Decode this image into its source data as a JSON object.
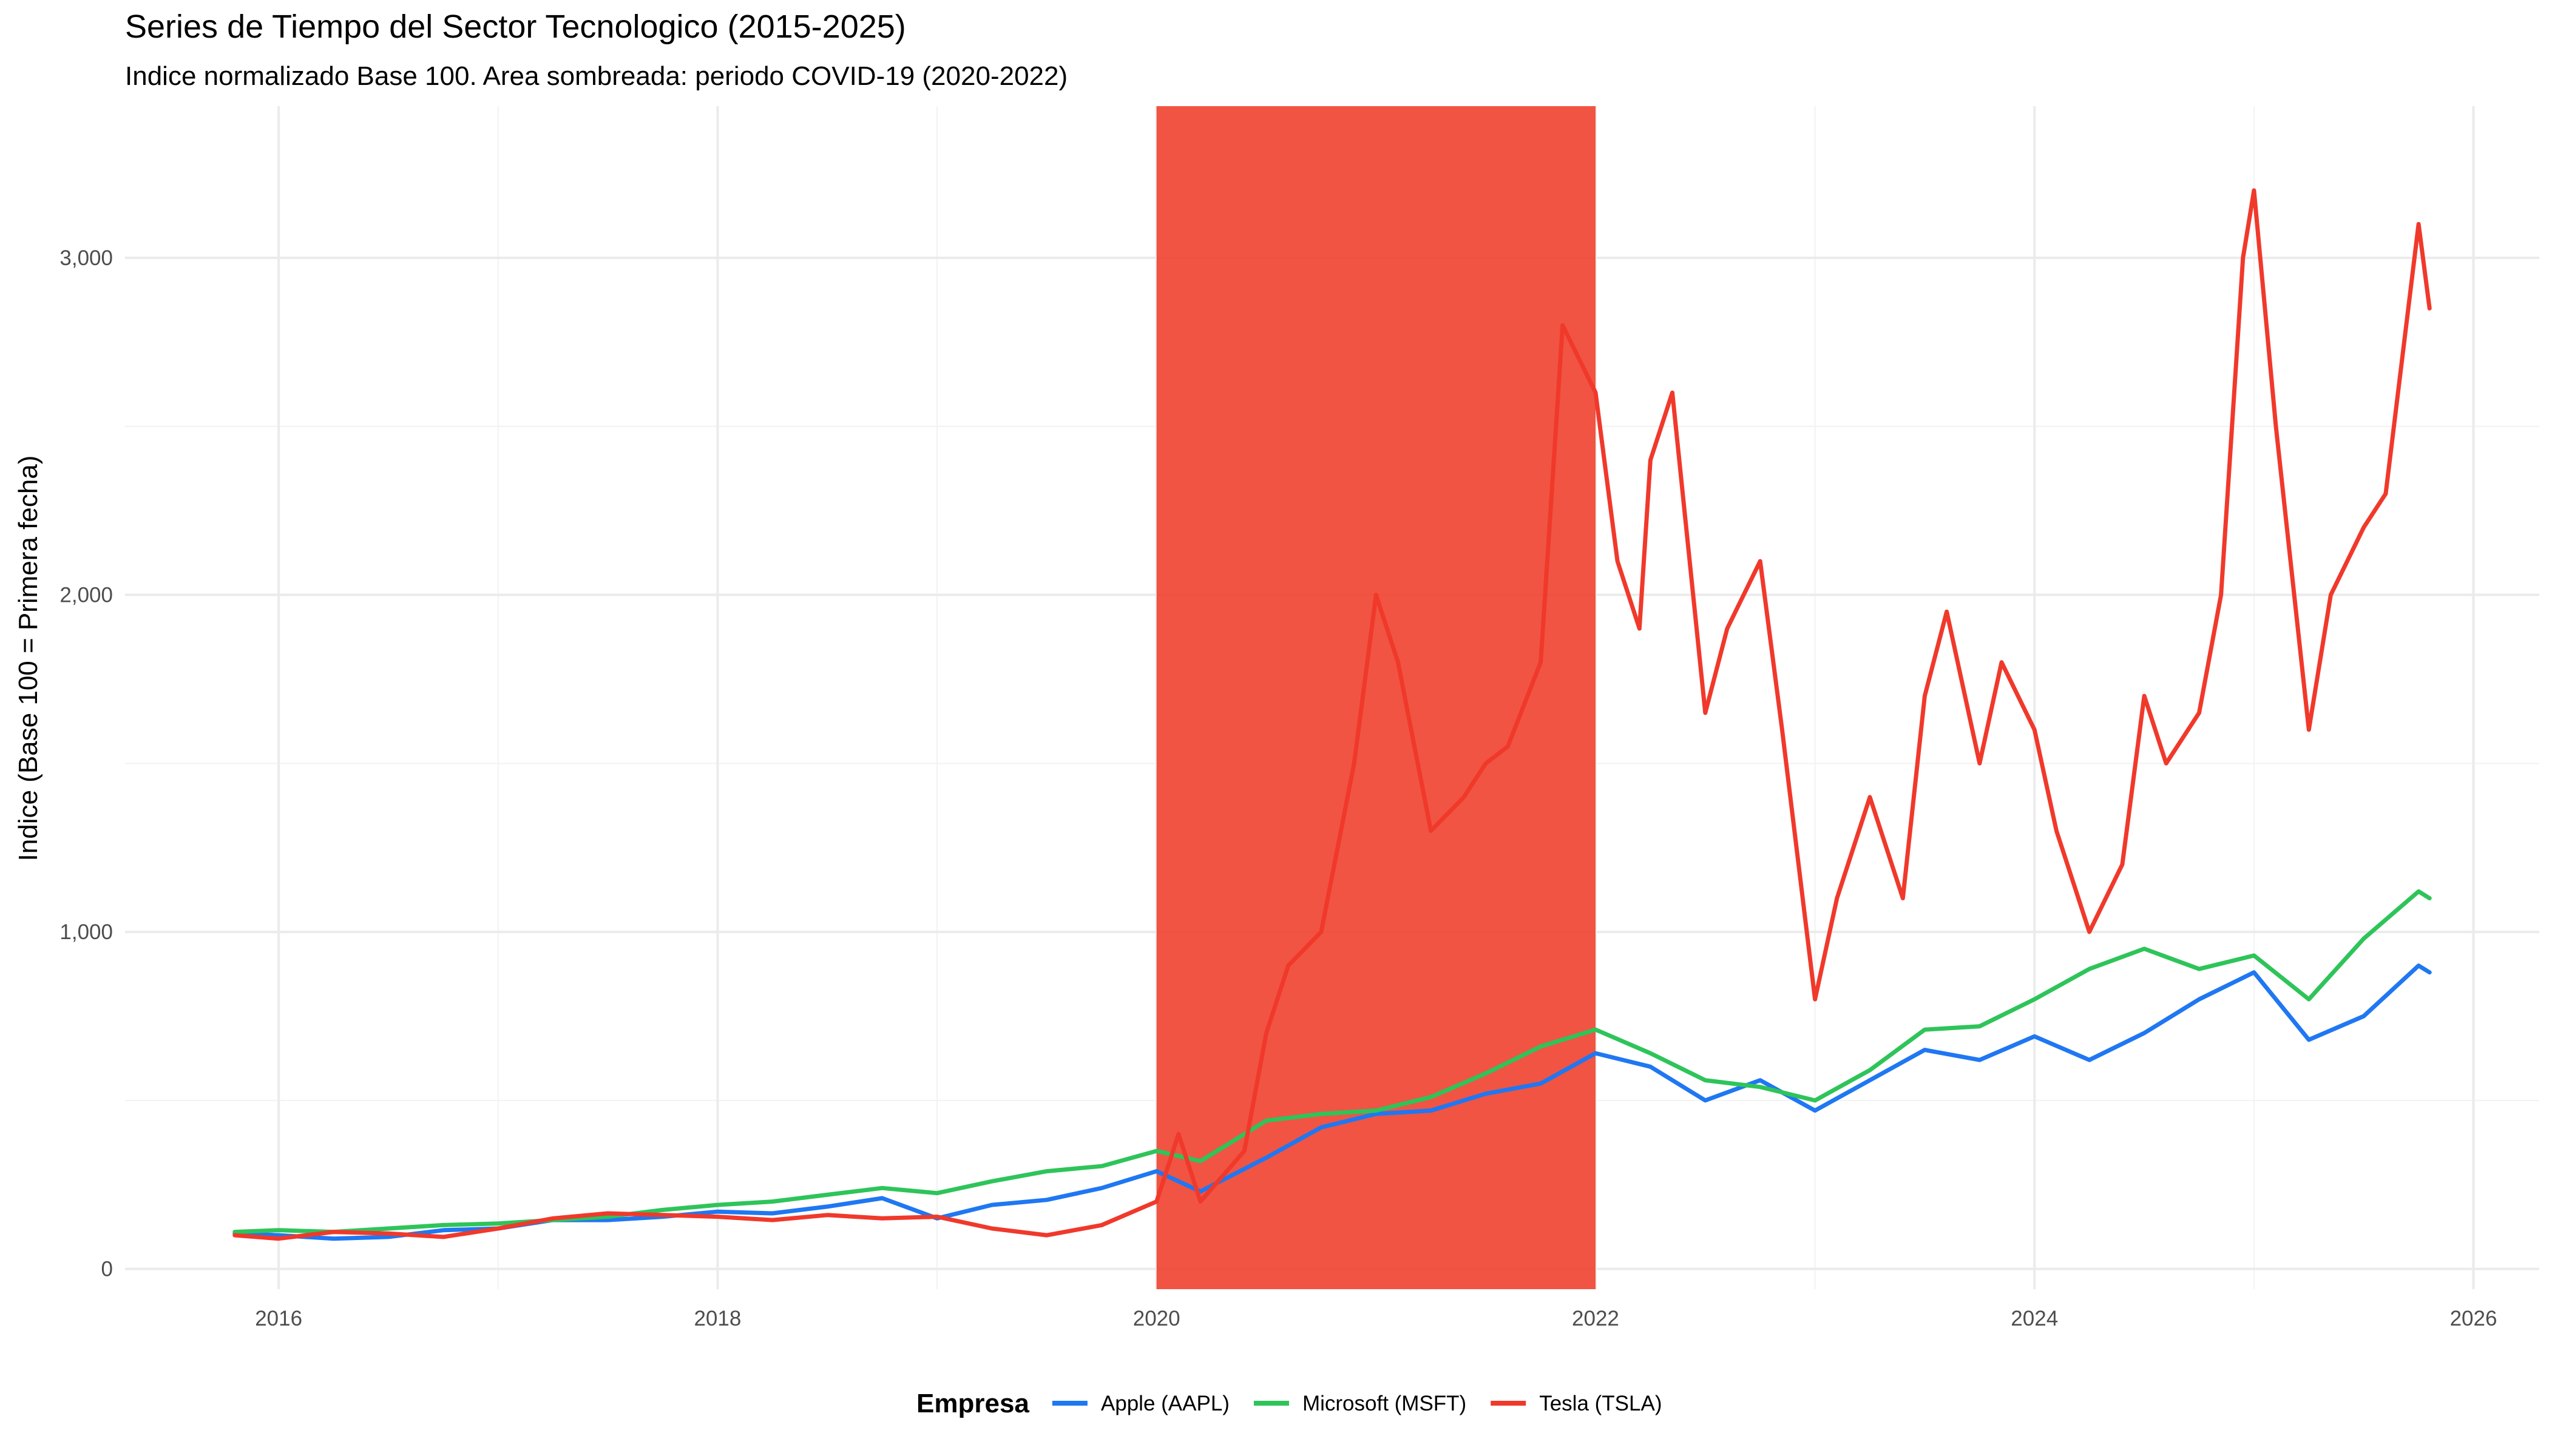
{
  "chart_data": {
    "type": "line",
    "title": "Series de Tiempo del Sector Tecnologico (2015-2025)",
    "subtitle": "Indice normalizado Base 100. Area sombreada: periodo COVID-19 (2020-2022)",
    "xlabel": "",
    "ylabel": "Indice (Base 100 = Primera fecha)",
    "xlim": [
      2015.3,
      2026.3
    ],
    "ylim": [
      -60,
      3450
    ],
    "x_ticks": [
      "2016",
      "2018",
      "2020",
      "2022",
      "2024",
      "2026"
    ],
    "y_ticks": [
      "0",
      "1,000",
      "2,000",
      "3,000"
    ],
    "grid": true,
    "legend_position": "bottom",
    "legend_title": "Empresa",
    "shaded_region": {
      "x_start": 2020.0,
      "x_end": 2022.0,
      "color": "#f0412e"
    },
    "series": [
      {
        "name": "Apple (AAPL)",
        "color": "#1f77f2",
        "points": [
          [
            2015.8,
            105
          ],
          [
            2016.0,
            100
          ],
          [
            2016.25,
            90
          ],
          [
            2016.5,
            95
          ],
          [
            2016.75,
            115
          ],
          [
            2017.0,
            120
          ],
          [
            2017.25,
            145
          ],
          [
            2017.5,
            145
          ],
          [
            2017.75,
            155
          ],
          [
            2018.0,
            170
          ],
          [
            2018.25,
            165
          ],
          [
            2018.5,
            185
          ],
          [
            2018.75,
            210
          ],
          [
            2019.0,
            150
          ],
          [
            2019.25,
            190
          ],
          [
            2019.5,
            205
          ],
          [
            2019.75,
            240
          ],
          [
            2020.0,
            290
          ],
          [
            2020.2,
            230
          ],
          [
            2020.5,
            330
          ],
          [
            2020.75,
            420
          ],
          [
            2021.0,
            460
          ],
          [
            2021.25,
            470
          ],
          [
            2021.5,
            520
          ],
          [
            2021.75,
            550
          ],
          [
            2022.0,
            640
          ],
          [
            2022.25,
            600
          ],
          [
            2022.5,
            500
          ],
          [
            2022.75,
            560
          ],
          [
            2023.0,
            470
          ],
          [
            2023.25,
            560
          ],
          [
            2023.5,
            650
          ],
          [
            2023.75,
            620
          ],
          [
            2024.0,
            690
          ],
          [
            2024.25,
            620
          ],
          [
            2024.5,
            700
          ],
          [
            2024.75,
            800
          ],
          [
            2025.0,
            880
          ],
          [
            2025.25,
            680
          ],
          [
            2025.5,
            750
          ],
          [
            2025.75,
            900
          ],
          [
            2025.8,
            880
          ]
        ]
      },
      {
        "name": "Microsoft (MSFT)",
        "color": "#2ec45a",
        "points": [
          [
            2015.8,
            110
          ],
          [
            2016.0,
            115
          ],
          [
            2016.25,
            110
          ],
          [
            2016.5,
            120
          ],
          [
            2016.75,
            130
          ],
          [
            2017.0,
            135
          ],
          [
            2017.25,
            145
          ],
          [
            2017.5,
            155
          ],
          [
            2017.75,
            175
          ],
          [
            2018.0,
            190
          ],
          [
            2018.25,
            200
          ],
          [
            2018.5,
            220
          ],
          [
            2018.75,
            240
          ],
          [
            2019.0,
            225
          ],
          [
            2019.25,
            260
          ],
          [
            2019.5,
            290
          ],
          [
            2019.75,
            305
          ],
          [
            2020.0,
            350
          ],
          [
            2020.2,
            320
          ],
          [
            2020.5,
            440
          ],
          [
            2020.75,
            460
          ],
          [
            2021.0,
            470
          ],
          [
            2021.25,
            510
          ],
          [
            2021.5,
            580
          ],
          [
            2021.75,
            660
          ],
          [
            2022.0,
            710
          ],
          [
            2022.25,
            640
          ],
          [
            2022.5,
            560
          ],
          [
            2022.75,
            540
          ],
          [
            2023.0,
            500
          ],
          [
            2023.25,
            590
          ],
          [
            2023.5,
            710
          ],
          [
            2023.75,
            720
          ],
          [
            2024.0,
            800
          ],
          [
            2024.25,
            890
          ],
          [
            2024.5,
            950
          ],
          [
            2024.75,
            890
          ],
          [
            2025.0,
            930
          ],
          [
            2025.25,
            800
          ],
          [
            2025.5,
            980
          ],
          [
            2025.75,
            1120
          ],
          [
            2025.8,
            1100
          ]
        ]
      },
      {
        "name": "Tesla (TSLA)",
        "color": "#f0392b",
        "points": [
          [
            2015.8,
            100
          ],
          [
            2016.0,
            90
          ],
          [
            2016.25,
            110
          ],
          [
            2016.5,
            105
          ],
          [
            2016.75,
            95
          ],
          [
            2017.0,
            120
          ],
          [
            2017.25,
            150
          ],
          [
            2017.5,
            165
          ],
          [
            2017.75,
            160
          ],
          [
            2018.0,
            155
          ],
          [
            2018.25,
            145
          ],
          [
            2018.5,
            160
          ],
          [
            2018.75,
            150
          ],
          [
            2019.0,
            155
          ],
          [
            2019.25,
            120
          ],
          [
            2019.5,
            100
          ],
          [
            2019.75,
            130
          ],
          [
            2020.0,
            200
          ],
          [
            2020.1,
            400
          ],
          [
            2020.2,
            200
          ],
          [
            2020.4,
            350
          ],
          [
            2020.5,
            700
          ],
          [
            2020.6,
            900
          ],
          [
            2020.75,
            1000
          ],
          [
            2020.9,
            1500
          ],
          [
            2021.0,
            2000
          ],
          [
            2021.1,
            1800
          ],
          [
            2021.25,
            1300
          ],
          [
            2021.4,
            1400
          ],
          [
            2021.5,
            1500
          ],
          [
            2021.6,
            1550
          ],
          [
            2021.75,
            1800
          ],
          [
            2021.85,
            2800
          ],
          [
            2022.0,
            2600
          ],
          [
            2022.1,
            2100
          ],
          [
            2022.2,
            1900
          ],
          [
            2022.25,
            2400
          ],
          [
            2022.35,
            2600
          ],
          [
            2022.5,
            1650
          ],
          [
            2022.6,
            1900
          ],
          [
            2022.75,
            2100
          ],
          [
            2022.85,
            1600
          ],
          [
            2023.0,
            800
          ],
          [
            2023.1,
            1100
          ],
          [
            2023.25,
            1400
          ],
          [
            2023.4,
            1100
          ],
          [
            2023.5,
            1700
          ],
          [
            2023.6,
            1950
          ],
          [
            2023.75,
            1500
          ],
          [
            2023.85,
            1800
          ],
          [
            2024.0,
            1600
          ],
          [
            2024.1,
            1300
          ],
          [
            2024.25,
            1000
          ],
          [
            2024.4,
            1200
          ],
          [
            2024.5,
            1700
          ],
          [
            2024.6,
            1500
          ],
          [
            2024.75,
            1650
          ],
          [
            2024.85,
            2000
          ],
          [
            2024.95,
            3000
          ],
          [
            2025.0,
            3200
          ],
          [
            2025.1,
            2500
          ],
          [
            2025.25,
            1600
          ],
          [
            2025.35,
            2000
          ],
          [
            2025.5,
            2200
          ],
          [
            2025.6,
            2300
          ],
          [
            2025.75,
            3100
          ],
          [
            2025.8,
            2850
          ]
        ]
      }
    ]
  }
}
